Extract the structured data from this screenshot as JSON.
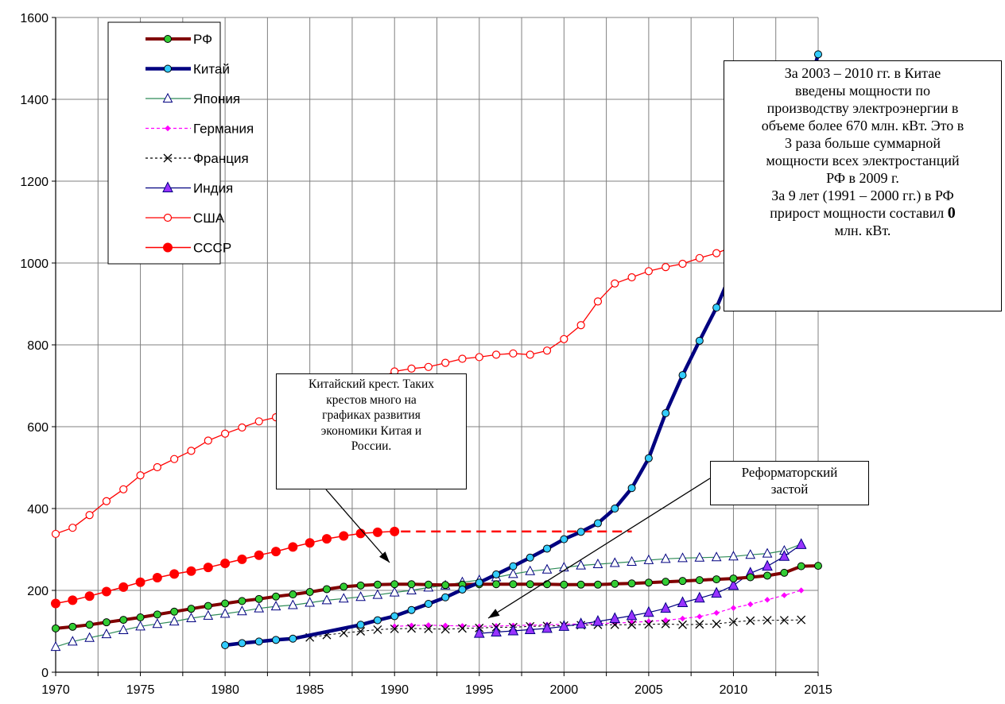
{
  "chart_data": {
    "type": "line",
    "title": "",
    "xlabel": "",
    "ylabel": "",
    "xlim": [
      1970,
      2015
    ],
    "ylim": [
      0,
      1600
    ],
    "x_ticks": [
      1970,
      1975,
      1980,
      1985,
      1990,
      1995,
      2000,
      2005,
      2010,
      2015
    ],
    "y_ticks": [
      0,
      200,
      400,
      600,
      800,
      1000,
      1200,
      1400,
      1600
    ],
    "grid": true,
    "legend_position": "top-left",
    "series": [
      {
        "name": "РФ",
        "color": "#800000",
        "marker": "circle-green",
        "x": [
          1970,
          1971,
          1972,
          1973,
          1974,
          1975,
          1976,
          1977,
          1978,
          1979,
          1980,
          1981,
          1982,
          1983,
          1984,
          1985,
          1986,
          1987,
          1988,
          1989,
          1990,
          1991,
          1992,
          1993,
          1994,
          1995,
          1996,
          1997,
          1998,
          1999,
          2000,
          2001,
          2002,
          2003,
          2004,
          2005,
          2006,
          2007,
          2008,
          2009,
          2010,
          2011,
          2012,
          2013,
          2014,
          2015
        ],
        "y": [
          107,
          111,
          116,
          122,
          128,
          134,
          141,
          148,
          155,
          162,
          168,
          174,
          179,
          185,
          190,
          196,
          203,
          209,
          212,
          214,
          215,
          215,
          214,
          213,
          214,
          215,
          215,
          215,
          215,
          215,
          214,
          214,
          214,
          216,
          217,
          219,
          221,
          223,
          225,
          227,
          229,
          232,
          236,
          243,
          259,
          260
        ]
      },
      {
        "name": "Китай",
        "color": "#000080",
        "marker": "circle-cyan",
        "x": [
          1980,
          1981,
          1982,
          1983,
          1984,
          1988,
          1989,
          1990,
          1991,
          1992,
          1993,
          1994,
          1995,
          1996,
          1997,
          1998,
          1999,
          2000,
          2001,
          2002,
          2003,
          2004,
          2005,
          2006,
          2007,
          2008,
          2009,
          2010,
          2011,
          2012,
          2013,
          2014,
          2015
        ],
        "y": [
          66,
          71,
          75,
          79,
          82,
          116,
          127,
          137,
          152,
          167,
          183,
          202,
          219,
          239,
          259,
          280,
          302,
          325,
          343,
          364,
          400,
          450,
          523,
          633,
          726,
          810,
          891,
          988,
          1065,
          1140,
          1250,
          1360,
          1510
        ]
      },
      {
        "name": "Япония",
        "color": "#2e8b57",
        "marker": "triangle-white",
        "x": [
          1970,
          1971,
          1972,
          1973,
          1974,
          1975,
          1976,
          1977,
          1978,
          1979,
          1980,
          1981,
          1982,
          1983,
          1984,
          1985,
          1986,
          1987,
          1988,
          1989,
          1990,
          1991,
          1992,
          1993,
          1994,
          1995,
          1996,
          1997,
          1998,
          1999,
          2000,
          2001,
          2002,
          2003,
          2004,
          2005,
          2006,
          2007,
          2008,
          2009,
          2010,
          2011,
          2012,
          2013,
          2014
        ],
        "y": [
          62,
          75,
          84,
          93,
          103,
          112,
          118,
          124,
          132,
          138,
          143,
          149,
          156,
          161,
          164,
          170,
          176,
          180,
          184,
          189,
          195,
          200,
          207,
          212,
          220,
          225,
          232,
          240,
          247,
          251,
          256,
          261,
          264,
          267,
          270,
          274,
          277,
          279,
          280,
          281,
          283,
          287,
          290,
          297,
          313
        ]
      },
      {
        "name": "Германия",
        "color": "#ff00ff",
        "marker": "diamond-magenta",
        "x": [
          1990,
          1991,
          1992,
          1993,
          1994,
          1995,
          1996,
          1997,
          1998,
          1999,
          2000,
          2001,
          2002,
          2003,
          2004,
          2005,
          2006,
          2007,
          2008,
          2009,
          2010,
          2011,
          2012,
          2013,
          2014
        ],
        "y": [
          112,
          114,
          115,
          114,
          113,
          112,
          113,
          114,
          115,
          116,
          117,
          118,
          119,
          120,
          122,
          124,
          127,
          131,
          136,
          145,
          157,
          166,
          177,
          188,
          200
        ]
      },
      {
        "name": "Франция",
        "color": "#000000",
        "marker": "cross",
        "x": [
          1985,
          1986,
          1987,
          1988,
          1989,
          1990,
          1991,
          1992,
          1993,
          1994,
          1995,
          1996,
          1997,
          1998,
          1999,
          2000,
          2001,
          2002,
          2003,
          2004,
          2005,
          2006,
          2007,
          2008,
          2009,
          2010,
          2011,
          2012,
          2013,
          2014
        ],
        "y": [
          85,
          91,
          96,
          100,
          104,
          106,
          107,
          106,
          105,
          107,
          108,
          110,
          110,
          112,
          113,
          114,
          115,
          116,
          116,
          116,
          117,
          118,
          116,
          117,
          118,
          123,
          126,
          127,
          127,
          128
        ]
      },
      {
        "name": "Индия",
        "color": "#000080",
        "marker": "triangle-violet",
        "x": [
          1995,
          1996,
          1997,
          1998,
          1999,
          2000,
          2001,
          2002,
          2003,
          2004,
          2005,
          2006,
          2007,
          2008,
          2009,
          2010,
          2011,
          2012,
          2013,
          2014
        ],
        "y": [
          95,
          98,
          101,
          104,
          107,
          112,
          118,
          124,
          131,
          138,
          146,
          156,
          170,
          181,
          193,
          212,
          242,
          259,
          283,
          312
        ]
      },
      {
        "name": "США",
        "color": "#ff0000",
        "marker": "circle-white",
        "x": [
          1970,
          1971,
          1972,
          1973,
          1974,
          1975,
          1976,
          1977,
          1978,
          1979,
          1980,
          1981,
          1982,
          1983,
          1984,
          1985,
          1986,
          1987,
          1988,
          1989,
          1990,
          1991,
          1992,
          1993,
          1994,
          1995,
          1996,
          1997,
          1998,
          1999,
          2000,
          2001,
          2002,
          2003,
          2004,
          2005,
          2006,
          2007,
          2008,
          2009,
          2010,
          2011,
          2012,
          2013,
          2014
        ],
        "y": [
          338,
          353,
          384,
          418,
          447,
          481,
          501,
          521,
          541,
          566,
          583,
          598,
          613,
          623,
          639,
          656,
          666,
          676,
          691,
          716,
          735,
          742,
          746,
          756,
          766,
          770,
          776,
          779,
          776,
          786,
          814,
          848,
          906,
          950,
          965,
          980,
          990,
          998,
          1012,
          1024,
          1040,
          1052,
          1062,
          1064,
          1071
        ]
      },
      {
        "name": "СССР",
        "color": "#ff0000",
        "marker": "circle-red",
        "x": [
          1970,
          1971,
          1972,
          1973,
          1974,
          1975,
          1976,
          1977,
          1978,
          1979,
          1980,
          1981,
          1982,
          1983,
          1984,
          1985,
          1986,
          1987,
          1988,
          1989,
          1990
        ],
        "y": [
          168,
          176,
          186,
          197,
          208,
          220,
          231,
          240,
          247,
          256,
          266,
          276,
          286,
          295,
          306,
          316,
          326,
          333,
          339,
          342,
          344
        ]
      }
    ],
    "extrapolation": {
      "x": [
        1990,
        2004
      ],
      "y": [
        344,
        344
      ],
      "color": "#ff0000",
      "style": "dashed"
    },
    "annotations": {
      "china_note": [
        {
          "text": "За 2003 – 2010 гг. в Китае"
        },
        {
          "text": "введены мощности по"
        },
        {
          "text": "производству электроэнергии в"
        },
        {
          "text": "объеме  более 670 млн. кВт. Это в"
        },
        {
          "text": "3 раза больше суммарной"
        },
        {
          "text": "мощности всех электростанций"
        },
        {
          "text": "РФ в 2009 г."
        },
        {
          "text": "За 9 лет (1991 – 2000 гг.) в РФ"
        },
        {
          "text": "прирост мощности составил ",
          "bold": "0"
        },
        {
          "text": "млн. кВт."
        }
      ],
      "cross_note": [
        "Китайский крест. Таких",
        "крестов много на",
        "графиках развития",
        "экономики Китая и",
        "России."
      ],
      "reform_note": [
        "Реформаторский",
        "застой"
      ]
    }
  }
}
